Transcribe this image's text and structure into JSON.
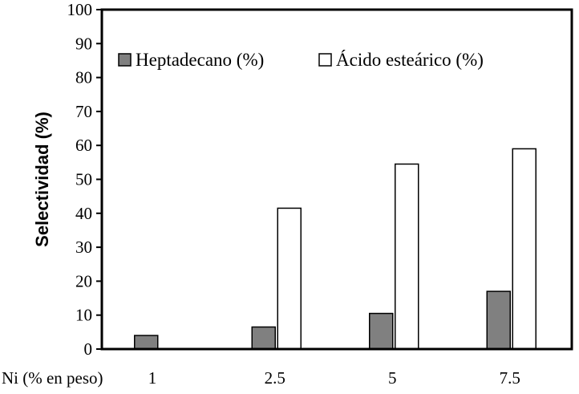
{
  "chart_data": {
    "type": "bar",
    "categories": [
      "1",
      "2.5",
      "5",
      "7.5"
    ],
    "xlabel": "Ni (% en peso)",
    "ylabel": "Selectividad (%)",
    "ylim": [
      0,
      100
    ],
    "yticks": [
      0,
      10,
      20,
      30,
      40,
      50,
      60,
      70,
      80,
      90,
      100
    ],
    "grid": false,
    "legend": "top-center",
    "series": [
      {
        "name": "Heptadecano (%)",
        "values": [
          4.0,
          6.5,
          10.5,
          17.0
        ],
        "color": "#808080"
      },
      {
        "name": "Ácido esteárico (%)",
        "values": [
          0,
          41.5,
          54.5,
          59.0
        ],
        "color": "#ffffff"
      }
    ]
  }
}
